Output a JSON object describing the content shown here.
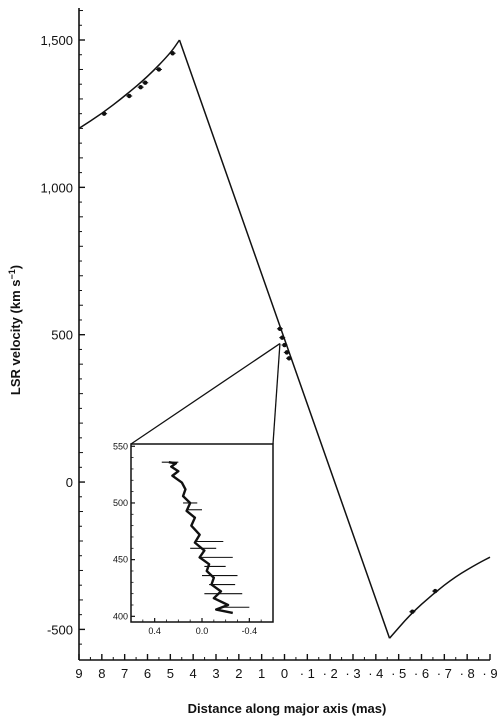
{
  "chart_data": {
    "type": "line",
    "title": "",
    "xlabel": "Distance along major axis (mas)",
    "ylabel": "LSR velocity (km s",
    "ylabel_sup": "−1",
    "ylabel_close": ")",
    "xlim": [
      9,
      -9
    ],
    "ylim": [
      -600,
      1600
    ],
    "x_ticks": [
      9,
      8,
      7,
      6,
      5,
      4,
      3,
      2,
      1,
      0,
      -1,
      -2,
      -3,
      -4,
      -5,
      -6,
      -7,
      -8,
      -9
    ],
    "x_tick_labels": [
      "9",
      "8",
      "7",
      "6",
      "5",
      "4",
      "3",
      "2",
      "1",
      "0",
      "· 1",
      "· 2",
      "· 3",
      "· 4",
      "· 5",
      "· 6",
      "· 7",
      "· 8",
      "· 9"
    ],
    "y_ticks": [
      1500,
      1000,
      500,
      0,
      -500
    ],
    "y_tick_labels": [
      "1,500",
      "1,000",
      "500",
      "0",
      "-500"
    ],
    "series": [
      {
        "kind": "redshifted-keplerian-curve",
        "x": [
          9.0,
          8.0,
          7.0,
          6.0,
          5.0,
          4.6
        ],
        "y": [
          1200,
          1250,
          1310,
          1375,
          1455,
          1500
        ]
      },
      {
        "kind": "model-line",
        "x": [
          4.6,
          -4.6
        ],
        "y": [
          1500,
          -530
        ]
      },
      {
        "kind": "blueshifted-keplerian-curve",
        "x": [
          -4.6,
          -5.5,
          -6.5,
          -7.5,
          -8.5,
          -9.0
        ],
        "y": [
          -530,
          -450,
          -380,
          -320,
          -275,
          -255
        ]
      }
    ],
    "points": {
      "x": [
        7.9,
        6.8,
        6.3,
        6.1,
        5.5,
        4.9,
        0.2,
        0.1,
        0.0,
        -0.1,
        -0.2,
        -5.6,
        -6.6
      ],
      "y": [
        1250,
        1310,
        1340,
        1355,
        1400,
        1455,
        520,
        490,
        465,
        440,
        420,
        -440,
        -370
      ]
    },
    "inset": {
      "xlim": [
        0.6,
        -0.6
      ],
      "ylim": [
        395,
        552
      ],
      "x_ticks": [
        0.4,
        0.0,
        -0.4
      ],
      "x_tick_labels": [
        "0.4",
        "0.0",
        "-0.4"
      ],
      "y_ticks": [
        550,
        500,
        450,
        400
      ],
      "y_tick_labels": [
        "550",
        "500",
        "450",
        "400"
      ],
      "trace": {
        "x": [
          0.28,
          0.22,
          0.26,
          0.2,
          0.25,
          0.17,
          0.14,
          0.16,
          0.1,
          0.13,
          0.06,
          0.09,
          0.02,
          0.06,
          -0.02,
          0.02,
          -0.06,
          -0.04,
          -0.1,
          -0.08,
          -0.16,
          -0.1,
          -0.22,
          -0.12,
          -0.26
        ],
        "y": [
          536,
          535,
          532,
          528,
          524,
          518,
          512,
          506,
          500,
          493,
          487,
          480,
          472,
          465,
          458,
          452,
          446,
          440,
          434,
          428,
          422,
          416,
          410,
          406,
          403
        ]
      },
      "error_bars": [
        {
          "y": 536,
          "x_lo": 0.34,
          "x_hi": 0.2
        },
        {
          "y": 500,
          "x_lo": 0.16,
          "x_hi": 0.04
        },
        {
          "y": 494,
          "x_lo": 0.12,
          "x_hi": 0.0
        },
        {
          "y": 466,
          "x_lo": 0.06,
          "x_hi": -0.18
        },
        {
          "y": 460,
          "x_lo": 0.1,
          "x_hi": -0.12
        },
        {
          "y": 452,
          "x_lo": 0.02,
          "x_hi": -0.26
        },
        {
          "y": 444,
          "x_lo": -0.02,
          "x_hi": -0.2
        },
        {
          "y": 436,
          "x_lo": 0.0,
          "x_hi": -0.3
        },
        {
          "y": 428,
          "x_lo": -0.06,
          "x_hi": -0.28
        },
        {
          "y": 420,
          "x_lo": -0.02,
          "x_hi": -0.34
        },
        {
          "y": 408,
          "x_lo": -0.16,
          "x_hi": -0.4
        }
      ]
    },
    "zoom_source_point": {
      "x": 0.2,
      "y": 470
    }
  }
}
